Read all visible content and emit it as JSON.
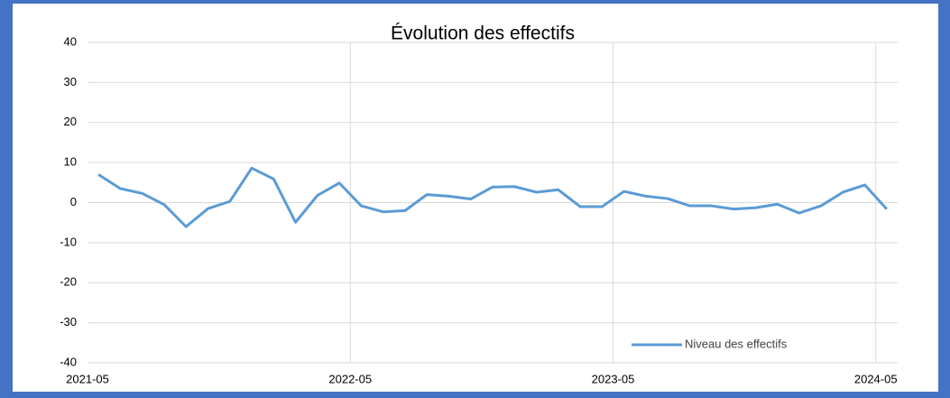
{
  "chart_data": {
    "type": "line",
    "title": "Évolution des effectifs",
    "categories": [
      "2021-05",
      null,
      null,
      null,
      null,
      null,
      null,
      null,
      null,
      null,
      null,
      null,
      "2022-05",
      null,
      null,
      null,
      null,
      null,
      null,
      null,
      null,
      null,
      null,
      null,
      "2023-05",
      null,
      null,
      null,
      null,
      null,
      null,
      null,
      null,
      null,
      null,
      null,
      "2024-05"
    ],
    "series": [
      {
        "name": "Niveau des effectifs",
        "color": "#5b9bd5",
        "values": [
          7,
          3.5,
          2.3,
          -0.5,
          -6,
          -1.5,
          0.3,
          8.6,
          5.9,
          -4.9,
          1.8,
          4.9,
          -0.8,
          -2.3,
          -2,
          2,
          1.6,
          0.9,
          3.9,
          4,
          2.6,
          3.2,
          -1,
          -1,
          2.8,
          1.6,
          1,
          -0.8,
          -0.8,
          -1.6,
          -1.3,
          -0.4,
          -2.6,
          -0.8,
          2.6,
          4.4,
          -1.6
        ]
      }
    ],
    "ylim": [
      -40,
      40
    ],
    "yticks": [
      -40,
      -30,
      -20,
      -10,
      0,
      10,
      20,
      30,
      40
    ],
    "grid": true,
    "legend": "lower right",
    "title_color": "#4472c4"
  }
}
